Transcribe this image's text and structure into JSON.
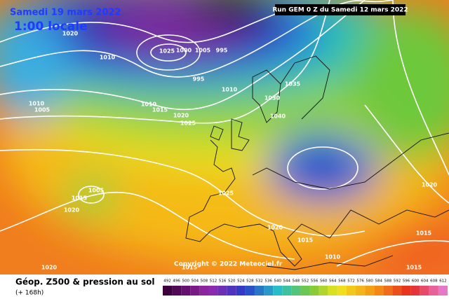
{
  "header": {
    "title": "Samedi 19 mars 2022",
    "local_time": "1:00 locale",
    "run": "Run GEM 0 Z du Samedi 12 mars 2022"
  },
  "copyright": "Copyright © 2022 Meteociel.fr",
  "footer": {
    "title": "Géop. Z500 & pression au sol",
    "subtitle": "(+ 168h)"
  },
  "scale": {
    "labels": [
      "492",
      "496",
      "500",
      "504",
      "508",
      "512",
      "516",
      "520",
      "524",
      "528",
      "532",
      "536",
      "540",
      "544",
      "548",
      "552",
      "556",
      "560",
      "564",
      "568",
      "572",
      "576",
      "580",
      "584",
      "588",
      "592",
      "596",
      "600",
      "604",
      "608",
      "612"
    ]
  },
  "isobars": {
    "labels": [
      "1020",
      "1010",
      "1025",
      "1000",
      "1005",
      "995",
      "995",
      "1010",
      "1035",
      "1010",
      "1005",
      "1010",
      "1015",
      "1020",
      "1025",
      "1030",
      "1040",
      "1025",
      "1005",
      "1015",
      "1020",
      "1020",
      "1015",
      "1010",
      "1020",
      "1015",
      "1015",
      "1020",
      "1015"
    ]
  }
}
